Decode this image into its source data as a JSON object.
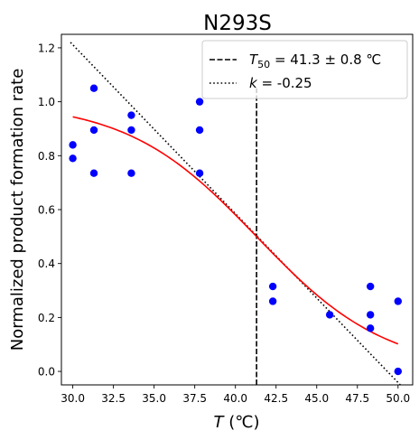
{
  "chart_data": {
    "type": "scatter",
    "title": "N293S",
    "xlabel": {
      "var": "T",
      "unit": " (℃)"
    },
    "ylabel": "Normalized product formation rate",
    "xlim": [
      29.3,
      50.9
    ],
    "ylim": [
      -0.05,
      1.25
    ],
    "xticks": [
      30.0,
      32.5,
      35.0,
      37.5,
      40.0,
      42.5,
      45.0,
      47.5,
      50.0
    ],
    "xtick_labels": [
      "30.0",
      "32.5",
      "35.0",
      "37.5",
      "40.0",
      "42.5",
      "45.0",
      "47.5",
      "50.0"
    ],
    "yticks": [
      0.0,
      0.2,
      0.4,
      0.6,
      0.8,
      1.0,
      1.2
    ],
    "ytick_labels": [
      "0.0",
      "0.2",
      "0.4",
      "0.6",
      "0.8",
      "1.0",
      "1.2"
    ],
    "points": {
      "color": "#0000ff",
      "x": [
        30.0,
        30.0,
        31.3,
        31.3,
        31.3,
        33.6,
        33.6,
        33.6,
        37.8,
        37.8,
        37.8,
        42.3,
        42.3,
        45.8,
        48.3,
        48.3,
        48.3,
        50.0,
        50.0
      ],
      "y": [
        0.84,
        0.79,
        1.05,
        0.895,
        0.735,
        0.95,
        0.895,
        0.735,
        1.0,
        0.895,
        0.735,
        0.315,
        0.26,
        0.21,
        0.315,
        0.21,
        0.16,
        0.26,
        0.0
      ]
    },
    "fit_curve": {
      "type": "sigmoid",
      "t50": 41.3,
      "k": -0.25,
      "color": "#ff0000"
    },
    "t50_line": {
      "x": 41.3,
      "style": "dashed",
      "color": "#000000"
    },
    "slope_line": {
      "x0": 29.86,
      "y0": 1.22,
      "x1": 50.14,
      "y1": -0.05,
      "style": "dotted",
      "color": "#000000"
    },
    "legend": {
      "placement": "top-right",
      "entries": [
        {
          "prefix": "T",
          "sub": "50",
          "text": " = 41.3 ± 0.8 ℃",
          "style": "dashed"
        },
        {
          "prefix": "k",
          "sub": "",
          "text": " = -0.25",
          "style": "dotted"
        }
      ]
    }
  }
}
